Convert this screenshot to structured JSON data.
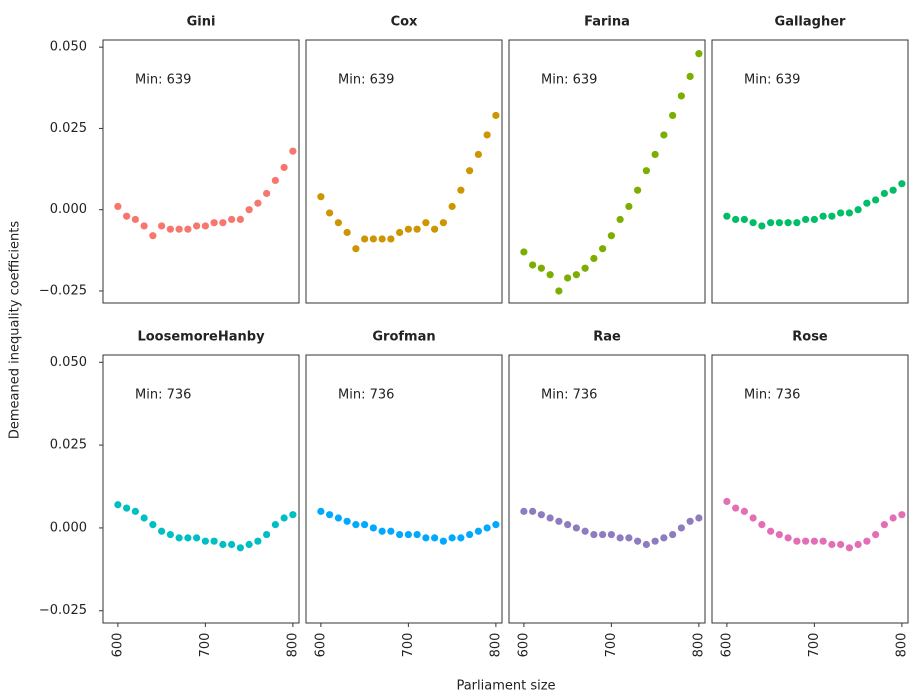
{
  "chart_data": {
    "type": "scatter",
    "xlabel": "Parliament size",
    "ylabel": "Demeaned inequality coefficients",
    "xlim": [
      583,
      807
    ],
    "xticks": [
      600,
      700,
      800
    ],
    "ylim": [
      -0.0287,
      0.0522
    ],
    "yticks": [
      {
        "value": 0.05,
        "label": "0.050"
      },
      0.025,
      {
        "value": 0,
        "label": "0.000"
      },
      {
        "value": -0.025,
        "label": "−0.025"
      }
    ],
    "x": [
      600,
      610,
      620,
      630,
      640,
      650,
      660,
      670,
      680,
      690,
      700,
      710,
      720,
      730,
      740,
      750,
      760,
      770,
      780,
      790,
      800
    ],
    "panels": [
      {
        "title": "Gini",
        "annotation": "Min: 639",
        "color": "#f8766d",
        "values": [
          0.001,
          -0.002,
          -0.003,
          -0.005,
          -0.008,
          -0.005,
          -0.006,
          -0.006,
          -0.006,
          -0.005,
          -0.005,
          -0.004,
          -0.004,
          -0.003,
          -0.003,
          0.0,
          0.002,
          0.005,
          0.009,
          0.013,
          0.018
        ]
      },
      {
        "title": "Cox",
        "annotation": "Min: 639",
        "color": "#cd9600",
        "values": [
          0.004,
          -0.001,
          -0.004,
          -0.007,
          -0.012,
          -0.009,
          -0.009,
          -0.009,
          -0.009,
          -0.007,
          -0.006,
          -0.006,
          -0.004,
          -0.006,
          -0.004,
          0.001,
          0.006,
          0.012,
          0.017,
          0.023,
          0.029
        ]
      },
      {
        "title": "Farina",
        "annotation": "Min: 639",
        "color": "#7cae00",
        "values": [
          -0.013,
          -0.017,
          -0.018,
          -0.02,
          -0.025,
          -0.021,
          -0.02,
          -0.018,
          -0.015,
          -0.012,
          -0.008,
          -0.003,
          0.001,
          0.006,
          0.012,
          0.017,
          0.023,
          0.029,
          0.035,
          0.041,
          0.048
        ]
      },
      {
        "title": "Gallagher",
        "annotation": "Min: 639",
        "color": "#00be67",
        "values": [
          -0.002,
          -0.003,
          -0.003,
          -0.004,
          -0.005,
          -0.004,
          -0.004,
          -0.004,
          -0.004,
          -0.003,
          -0.003,
          -0.002,
          -0.002,
          -0.001,
          -0.001,
          0.0,
          0.002,
          0.003,
          0.005,
          0.006,
          0.008
        ]
      },
      {
        "title": "LoosemoreHanby",
        "annotation": "Min: 736",
        "color": "#00bfc4",
        "values": [
          0.007,
          0.006,
          0.005,
          0.003,
          0.001,
          -0.001,
          -0.002,
          -0.003,
          -0.003,
          -0.003,
          -0.004,
          -0.004,
          -0.005,
          -0.005,
          -0.006,
          -0.005,
          -0.004,
          -0.002,
          0.001,
          0.003,
          0.004
        ]
      },
      {
        "title": "Grofman",
        "annotation": "Min: 736",
        "color": "#00a9ff",
        "values": [
          0.005,
          0.004,
          0.003,
          0.002,
          0.001,
          0.001,
          0.0,
          -0.001,
          -0.001,
          -0.002,
          -0.002,
          -0.002,
          -0.003,
          -0.003,
          -0.004,
          -0.003,
          -0.003,
          -0.002,
          -0.001,
          0.0,
          0.001
        ]
      },
      {
        "title": "Rae",
        "annotation": "Min: 736",
        "color": "#8f7bbf",
        "values": [
          0.005,
          0.005,
          0.004,
          0.003,
          0.002,
          0.001,
          0.0,
          -0.001,
          -0.002,
          -0.002,
          -0.002,
          -0.003,
          -0.003,
          -0.004,
          -0.005,
          -0.004,
          -0.003,
          -0.002,
          0.0,
          0.002,
          0.003
        ]
      },
      {
        "title": "Rose",
        "annotation": "Min: 736",
        "color": "#e46eb6",
        "values": [
          0.008,
          0.006,
          0.005,
          0.003,
          0.001,
          -0.001,
          -0.002,
          -0.003,
          -0.004,
          -0.004,
          -0.004,
          -0.004,
          -0.005,
          -0.005,
          -0.006,
          -0.005,
          -0.004,
          -0.002,
          0.001,
          0.003,
          0.004
        ]
      }
    ]
  }
}
